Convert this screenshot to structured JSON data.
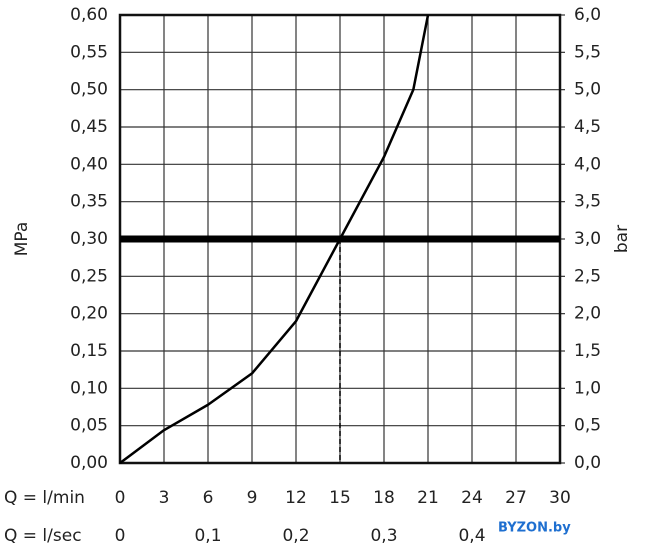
{
  "chart_data": {
    "type": "line",
    "ylabel": "MPa",
    "y2label": "bar",
    "xlabel": "Q = l/min",
    "x2label": "Q = l/sec",
    "x": [
      0,
      3,
      6,
      9,
      12,
      15,
      18,
      20,
      21
    ],
    "series": [
      {
        "color": "#000000",
        "values": [
          0,
          0.044,
          0.078,
          0.12,
          0.19,
          0.3,
          0.41,
          0.5,
          0.6
        ]
      }
    ],
    "xlim": [
      0,
      30
    ],
    "xticks": [
      0,
      3,
      6,
      9,
      12,
      15,
      18,
      21,
      24,
      27,
      30
    ],
    "x2lim": [
      0,
      0.5
    ],
    "x2ticks": [
      0,
      {
        "value": 0.1,
        "label": "0,1"
      },
      {
        "value": 0.2,
        "label": "0,2"
      },
      {
        "value": 0.3,
        "label": "0,3"
      },
      {
        "value": 0.4,
        "label": "0,4"
      }
    ],
    "ylim": [
      0,
      0.6
    ],
    "yticks": [
      {
        "value": 0,
        "label": "0,00"
      },
      {
        "value": 0.05,
        "label": "0,05"
      },
      {
        "value": 0.1,
        "label": "0,10"
      },
      {
        "value": 0.15,
        "label": "0,15"
      },
      {
        "value": 0.2,
        "label": "0,20"
      },
      {
        "value": 0.25,
        "label": "0,25"
      },
      {
        "value": 0.3,
        "label": "0,30"
      },
      {
        "value": 0.35,
        "label": "0,35"
      },
      {
        "value": 0.4,
        "label": "0,40"
      },
      {
        "value": 0.45,
        "label": "0,45"
      },
      {
        "value": 0.5,
        "label": "0,50"
      },
      {
        "value": 0.55,
        "label": "0,55"
      },
      {
        "value": 0.6,
        "label": "0,60"
      }
    ],
    "y2lim": [
      0,
      6
    ],
    "y2ticks": [
      {
        "value": 0,
        "label": "0,0"
      },
      {
        "value": 0.5,
        "label": "0,5"
      },
      {
        "value": 1,
        "label": "1,0"
      },
      {
        "value": 1.5,
        "label": "1,5"
      },
      {
        "value": 2,
        "label": "2,0"
      },
      {
        "value": 2.5,
        "label": "2,5"
      },
      {
        "value": 3,
        "label": "3,0"
      },
      {
        "value": 3.5,
        "label": "3,5"
      },
      {
        "value": 4,
        "label": "4,0"
      },
      {
        "value": 4.5,
        "label": "4,5"
      },
      {
        "value": 5,
        "label": "5,0"
      },
      {
        "value": 5.5,
        "label": "5,5"
      },
      {
        "value": 6,
        "label": "6,0"
      }
    ],
    "hline": 0.3,
    "vline": 15,
    "grid": true,
    "watermark": "BYZON.by"
  }
}
